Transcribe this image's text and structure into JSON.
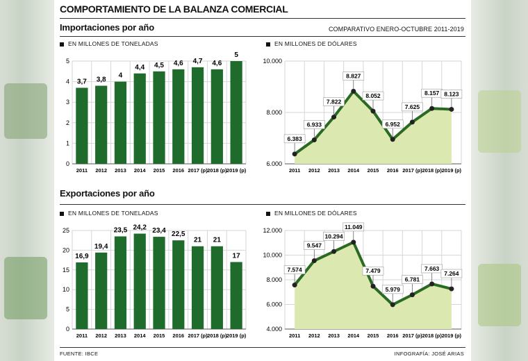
{
  "header": {
    "title": "COMPORTAMIENTO DE LA BALANZA COMERCIAL",
    "imports_title": "Importaciones por año",
    "comparison_note": "COMPARATIVO ENERO-OCTUBRE 2011-2019",
    "exports_title": "Exportaciones por año"
  },
  "captions": {
    "imp_tons": "EN MILLONES DE TONELADAS",
    "imp_usd": "EN MILLONES DE DÓLARES",
    "exp_tons": "EN MILLONES DE TONELADAS",
    "exp_usd": "EN MILLONES DE DÓLARES"
  },
  "footer": {
    "source": "FUENTE: IBCE",
    "credit": "INFOGRAFÍA: JOSÉ ARIAS"
  },
  "colors": {
    "bar": "#1f6b2b",
    "line": "#2b6a23",
    "area": "#dbe9b0",
    "grid": "#d6d6d6",
    "marker": "#222222"
  },
  "chart_data": [
    {
      "type": "bar",
      "categories": [
        "2011",
        "2012",
        "2013",
        "2014",
        "2015",
        "2016",
        "2017 (p)",
        "2018 (p)",
        "2019 (p)"
      ],
      "values": [
        3.7,
        3.8,
        4,
        4.4,
        4.5,
        4.6,
        4.7,
        4.6,
        5
      ],
      "labels": [
        "3,7",
        "3,8",
        "4",
        "4,4",
        "4,5",
        "4,6",
        "4,7",
        "4,6",
        "5"
      ],
      "yticks": [
        "0",
        "1",
        "2",
        "3",
        "4",
        "5"
      ],
      "ylim": [
        0,
        5
      ]
    },
    {
      "type": "area",
      "categories": [
        "2011",
        "2012",
        "2013",
        "2014",
        "2015",
        "2016",
        "2017 (p)",
        "2018 (p)",
        "2019 (p)"
      ],
      "values": [
        6383,
        6933,
        7822,
        8827,
        8052,
        6952,
        7625,
        8157,
        8123
      ],
      "labels": [
        "6.383",
        "6.933",
        "7.822",
        "8.827",
        "8.052",
        "6.952",
        "7.625",
        "8.157",
        "8.123"
      ],
      "yticks": [
        "6.000",
        "8.000",
        "10.000"
      ],
      "ylim": [
        6000,
        10000
      ]
    },
    {
      "type": "bar",
      "categories": [
        "2011",
        "2012",
        "2013",
        "2014",
        "2015",
        "2016",
        "2017 (p)",
        "2018 (p)",
        "2019 (p)"
      ],
      "values": [
        16.9,
        19.4,
        23.5,
        24.2,
        23.4,
        22.5,
        21,
        21,
        17
      ],
      "labels": [
        "16,9",
        "19,4",
        "23,5",
        "24,2",
        "23,4",
        "22,5",
        "21",
        "21",
        "17"
      ],
      "yticks": [
        "0",
        "5",
        "10",
        "15",
        "20",
        "25"
      ],
      "ylim": [
        0,
        25
      ]
    },
    {
      "type": "area",
      "categories": [
        "2011",
        "2012",
        "2013",
        "2014",
        "2015",
        "2016",
        "2017 (p)",
        "2018 (p)",
        "2019 (p)"
      ],
      "values": [
        7574,
        9547,
        10294,
        11049,
        7479,
        5979,
        6781,
        7663,
        7264
      ],
      "labels": [
        "7.574",
        "9.547",
        "10.294",
        "11.049",
        "7.479",
        "5.979",
        "6.781",
        "7.663",
        "7.264"
      ],
      "yticks": [
        "4.000",
        "6.000",
        "8.000",
        "10.000",
        "12.000"
      ],
      "ylim": [
        4000,
        12000
      ]
    }
  ]
}
